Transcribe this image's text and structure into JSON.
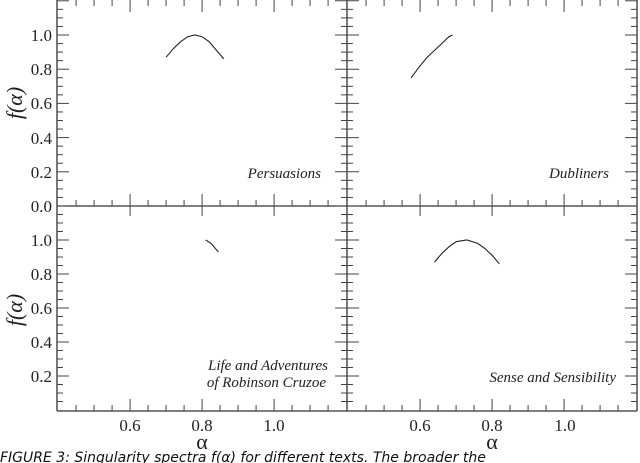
{
  "figure": {
    "caption": "FIGURE 3: Singularity spectra f(α) for different texts. The broader the",
    "x_axis_title": "α",
    "y_axis_title": "f(α)"
  },
  "chart_data": [
    {
      "type": "line",
      "panel": "top-left",
      "title": "Persuasions",
      "xlabel": "",
      "ylabel": "f(α)",
      "xlim": [
        0.4,
        1.19
      ],
      "ylim": [
        -0.1,
        1.2
      ],
      "yticks": [
        "0.0",
        "0.2",
        "0.4",
        "0.6",
        "0.8",
        "1.0"
      ],
      "x": [
        0.7,
        0.72,
        0.74,
        0.76,
        0.78,
        0.8,
        0.82,
        0.84,
        0.86
      ],
      "y": [
        0.87,
        0.92,
        0.96,
        0.99,
        1.0,
        0.99,
        0.96,
        0.91,
        0.86
      ]
    },
    {
      "type": "line",
      "panel": "top-right",
      "title": "Dubliners",
      "xlabel": "",
      "ylabel": "",
      "xlim": [
        0.4,
        1.19
      ],
      "ylim": [
        -0.1,
        1.2
      ],
      "x": [
        0.575,
        0.6,
        0.62,
        0.64,
        0.66,
        0.68,
        0.69
      ],
      "y": [
        0.75,
        0.82,
        0.87,
        0.91,
        0.95,
        0.99,
        1.0
      ]
    },
    {
      "type": "line",
      "panel": "bottom-left",
      "title": "Life and Adventures of Robinson Cruzoe",
      "xlabel": "α",
      "ylabel": "f(α)",
      "xlim": [
        0.4,
        1.19
      ],
      "ylim": [
        0.0,
        1.2
      ],
      "xticks": [
        "0.6",
        "0.8",
        "1.0"
      ],
      "yticks": [
        "0.2",
        "0.4",
        "0.6",
        "0.8",
        "1.0"
      ],
      "x": [
        0.81,
        0.825,
        0.835,
        0.845
      ],
      "y": [
        1.0,
        0.98,
        0.955,
        0.93
      ]
    },
    {
      "type": "line",
      "panel": "bottom-right",
      "title": "Sense and Sensibility",
      "xlabel": "α",
      "ylabel": "",
      "xlim": [
        0.4,
        1.19
      ],
      "ylim": [
        0.0,
        1.2
      ],
      "xticks": [
        "0.6",
        "0.8",
        "1.0"
      ],
      "x": [
        0.64,
        0.66,
        0.68,
        0.7,
        0.73,
        0.76,
        0.78,
        0.8,
        0.82
      ],
      "y": [
        0.87,
        0.92,
        0.96,
        0.99,
        1.0,
        0.98,
        0.95,
        0.91,
        0.86
      ]
    }
  ],
  "labels": {
    "panel1": "Persuasions",
    "panel2": "Dubliners",
    "panel3_line1": "Life and Adventures",
    "panel3_line2": "of Robinson Cruzoe",
    "panel4": "Sense and Sensibility",
    "ytick_top": [
      "1.0",
      "0.8",
      "0.6",
      "0.4",
      "0.2",
      "0.0"
    ],
    "ytick_bottom": [
      "1.0",
      "0.8",
      "0.6",
      "0.4",
      "0.2"
    ],
    "xtick_left": [
      "0.6",
      "0.8",
      "1.0"
    ],
    "xtick_right": [
      "0.6",
      "0.8",
      "1.0"
    ]
  }
}
